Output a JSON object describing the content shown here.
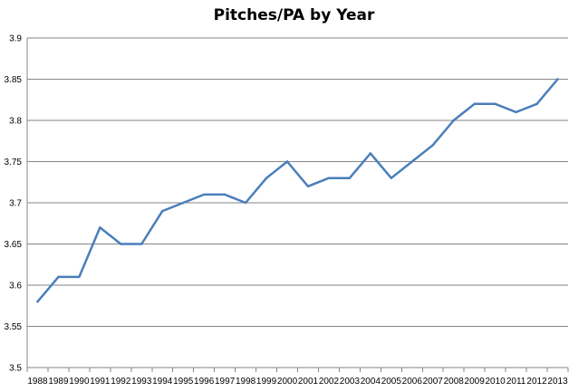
{
  "chart_data": {
    "type": "line",
    "title": "Pitches/PA by Year",
    "xlabel": "",
    "ylabel": "",
    "categories": [
      "1988",
      "1989",
      "1990",
      "1991",
      "1992",
      "1993",
      "1994",
      "1995",
      "1996",
      "1997",
      "1998",
      "1999",
      "2000",
      "2001",
      "2002",
      "2003",
      "2004",
      "2005",
      "2006",
      "2007",
      "2008",
      "2009",
      "2010",
      "2011",
      "2012",
      "2013"
    ],
    "series": [
      {
        "values": [
          3.58,
          3.61,
          3.61,
          3.67,
          3.65,
          3.65,
          3.69,
          3.7,
          3.71,
          3.71,
          3.7,
          3.73,
          3.75,
          3.72,
          3.73,
          3.73,
          3.76,
          3.73,
          3.75,
          3.77,
          3.8,
          3.82,
          3.82,
          3.81,
          3.82,
          3.85
        ],
        "color": "#4a7ebb"
      }
    ],
    "ylim": [
      3.5,
      3.9
    ],
    "yticks": [
      "3.5",
      "3.55",
      "3.6",
      "3.65",
      "3.7",
      "3.75",
      "3.8",
      "3.85",
      "3.9"
    ],
    "grid": "horizontal",
    "legend": "none",
    "gridline_color": "#868686"
  }
}
